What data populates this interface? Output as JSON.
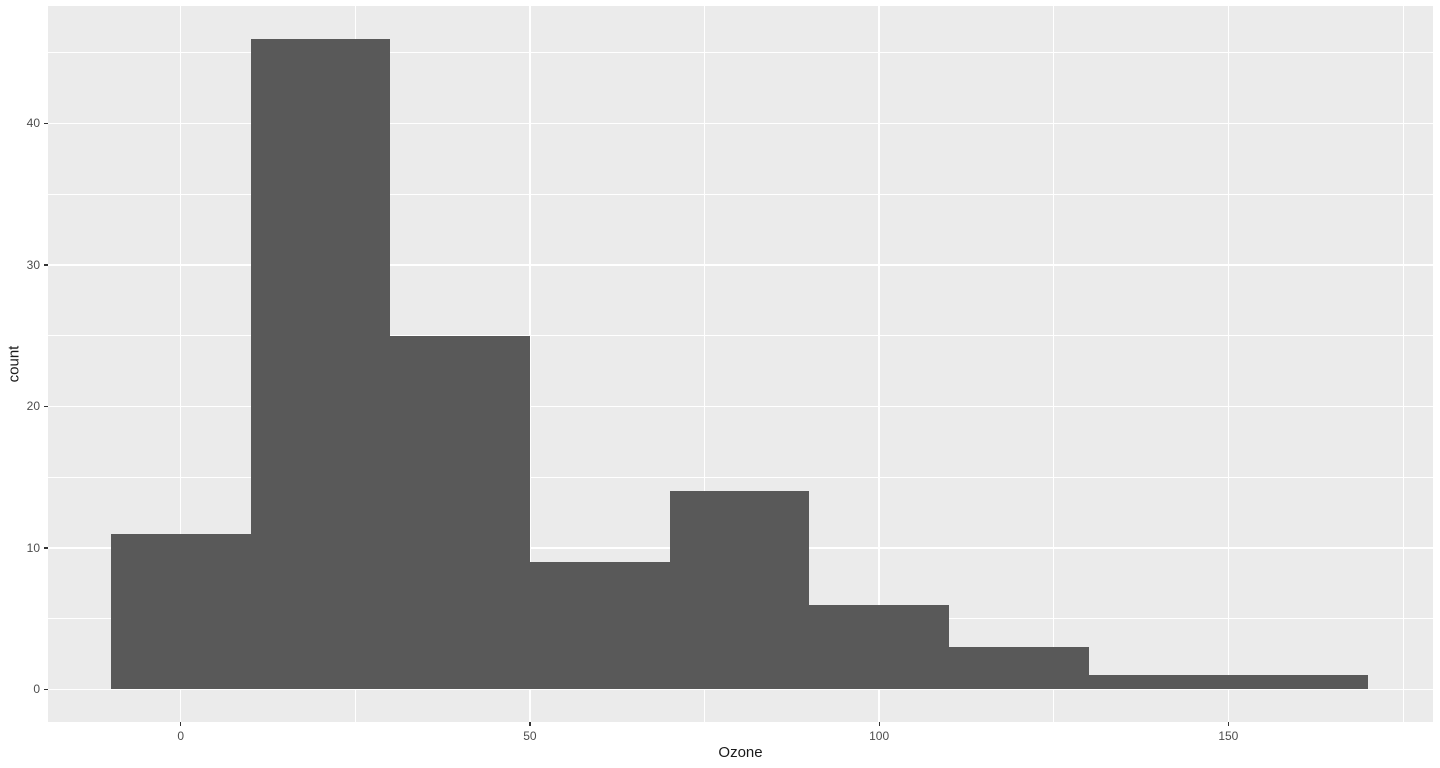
{
  "chart_data": {
    "type": "bar",
    "subtype": "histogram",
    "title": "",
    "xlabel": "Ozone",
    "ylabel": "count",
    "bins": [
      {
        "start": -10,
        "end": 10,
        "count": 11
      },
      {
        "start": 10,
        "end": 30,
        "count": 46
      },
      {
        "start": 30,
        "end": 50,
        "count": 25
      },
      {
        "start": 50,
        "end": 70,
        "count": 9
      },
      {
        "start": 70,
        "end": 90,
        "count": 14
      },
      {
        "start": 90,
        "end": 110,
        "count": 6
      },
      {
        "start": 110,
        "end": 130,
        "count": 3
      },
      {
        "start": 130,
        "end": 150,
        "count": 1
      },
      {
        "start": 150,
        "end": 170,
        "count": 1
      }
    ],
    "xlim": [
      -19,
      179.3
    ],
    "ylim": [
      -2.3,
      48.3
    ],
    "x_major_breaks": [
      0,
      50,
      100,
      150
    ],
    "x_tick_labels": [
      "0",
      "50",
      "100",
      "150"
    ],
    "x_minor_breaks": [
      25,
      75,
      125,
      175
    ],
    "y_major_breaks": [
      0,
      10,
      20,
      30,
      40
    ],
    "y_tick_labels": [
      "0",
      "10",
      "20",
      "30",
      "40"
    ],
    "y_minor_breaks": [
      5,
      15,
      25,
      35,
      45
    ],
    "grid": "major-and-minor-on",
    "legend": "none",
    "colors": {
      "bar_fill": "#595959",
      "panel_background": "#EBEBEB",
      "grid_major": "#FFFFFF",
      "grid_minor": "#FFFFFF",
      "tick_label": "#4D4D4D",
      "axis_title": "#1a1a1a",
      "tick_mark": "#333333",
      "outer_background": "#FFFFFF"
    }
  }
}
